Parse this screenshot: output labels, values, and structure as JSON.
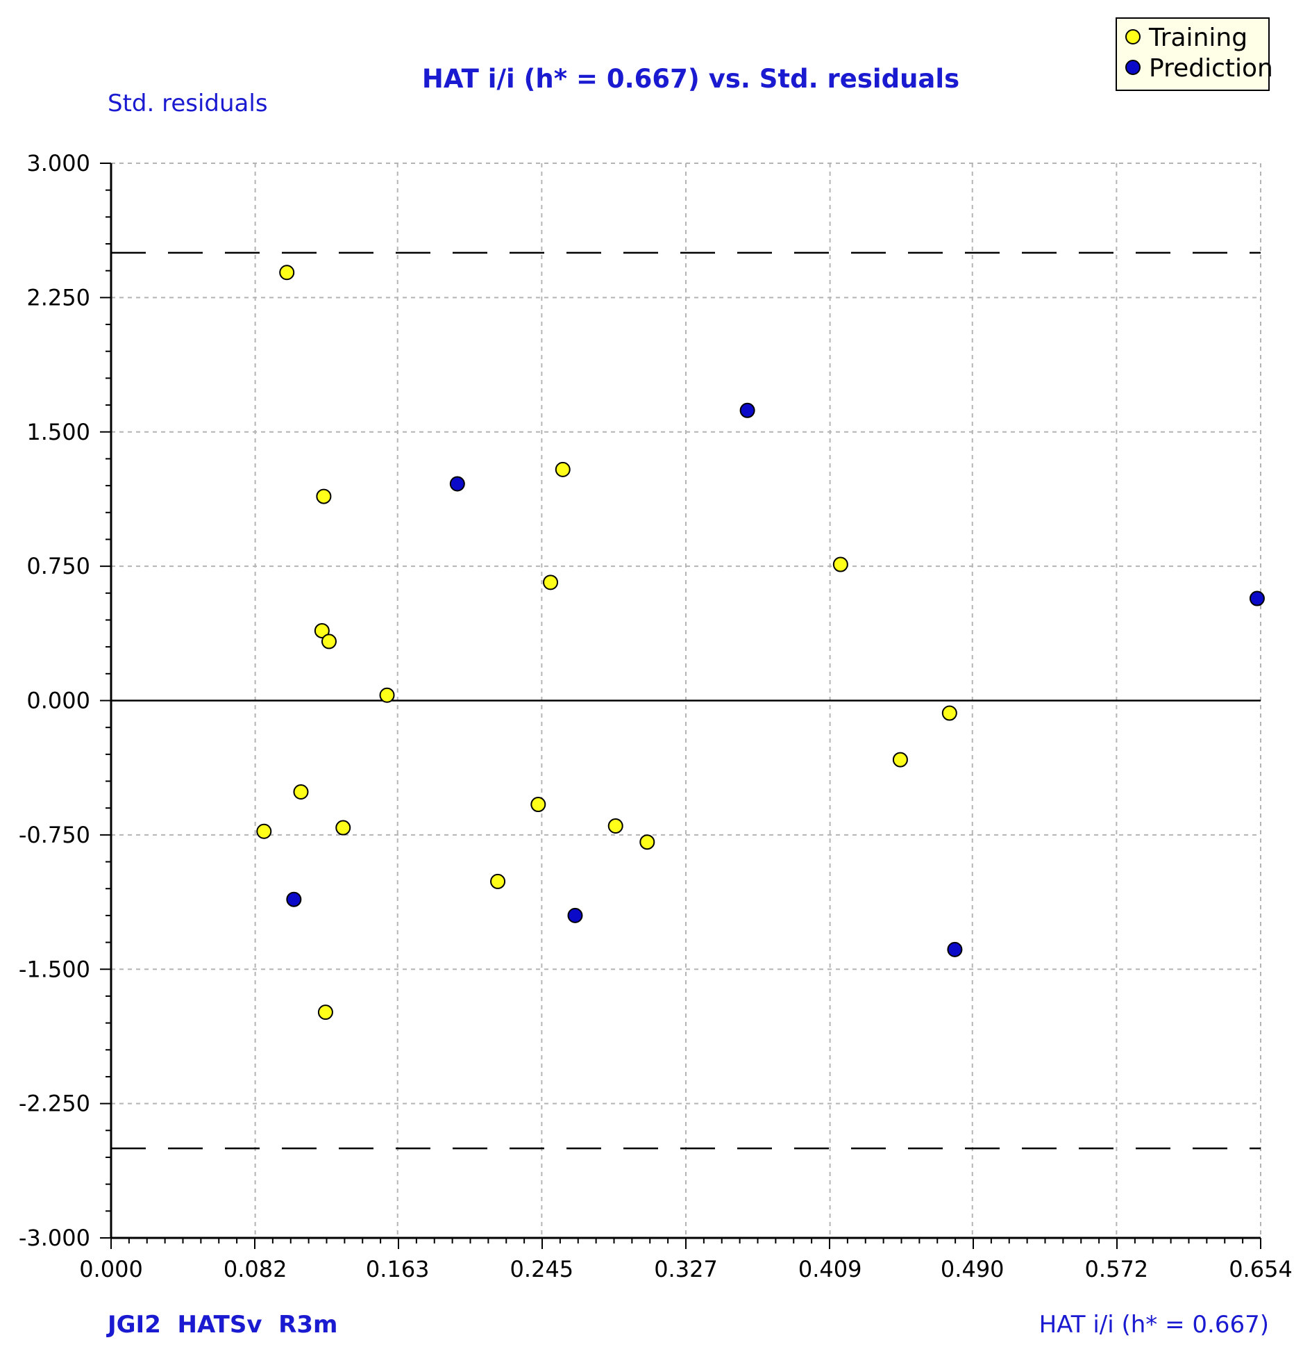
{
  "chart_data": {
    "type": "scatter",
    "title": "HAT i/i (h* = 0.667) vs. Std. residuals",
    "xlabel": "HAT i/i (h* = 0.667)",
    "ylabel": "Std. residuals",
    "footer": "JGI2  HATSv  R3m",
    "xlim": [
      0.0,
      0.654
    ],
    "ylim": [
      -3.0,
      3.0
    ],
    "xticks": [
      "0.000",
      "0.082",
      "0.163",
      "0.245",
      "0.327",
      "0.409",
      "0.490",
      "0.572",
      "0.654"
    ],
    "yticks": [
      "3.000",
      "2.250",
      "1.500",
      "0.750",
      "0.000",
      "-0.750",
      "-1.500",
      "-2.250",
      "-3.000"
    ],
    "xtick_values": [
      0.0,
      0.082,
      0.163,
      0.245,
      0.327,
      0.409,
      0.49,
      0.572,
      0.654
    ],
    "ytick_values": [
      3.0,
      2.25,
      1.5,
      0.75,
      0.0,
      -0.75,
      -1.5,
      -2.25,
      -3.0
    ],
    "grid": true,
    "threshold_lines": [
      2.5,
      -2.5
    ],
    "zero_line": 0.0,
    "legend_position": "top-right",
    "colors": {
      "training": "#ffff1a",
      "prediction": "#0a0ac8",
      "text_accent": "#1a1ad0"
    },
    "series": [
      {
        "name": "Training",
        "color": "#ffff1a",
        "points": [
          [
            0.1,
            2.39
          ],
          [
            0.121,
            1.14
          ],
          [
            0.12,
            0.39
          ],
          [
            0.124,
            0.33
          ],
          [
            0.157,
            0.03
          ],
          [
            0.257,
            1.29
          ],
          [
            0.25,
            0.66
          ],
          [
            0.415,
            0.76
          ],
          [
            0.477,
            -0.07
          ],
          [
            0.449,
            -0.33
          ],
          [
            0.108,
            -0.51
          ],
          [
            0.087,
            -0.73
          ],
          [
            0.132,
            -0.71
          ],
          [
            0.243,
            -0.58
          ],
          [
            0.287,
            -0.7
          ],
          [
            0.305,
            -0.79
          ],
          [
            0.22,
            -1.01
          ],
          [
            0.122,
            -1.74
          ]
        ]
      },
      {
        "name": "Prediction",
        "color": "#0a0ac8",
        "points": [
          [
            0.197,
            1.21
          ],
          [
            0.362,
            1.62
          ],
          [
            0.652,
            0.57
          ],
          [
            0.104,
            -1.11
          ],
          [
            0.264,
            -1.2
          ],
          [
            0.48,
            -1.39
          ]
        ]
      }
    ]
  }
}
